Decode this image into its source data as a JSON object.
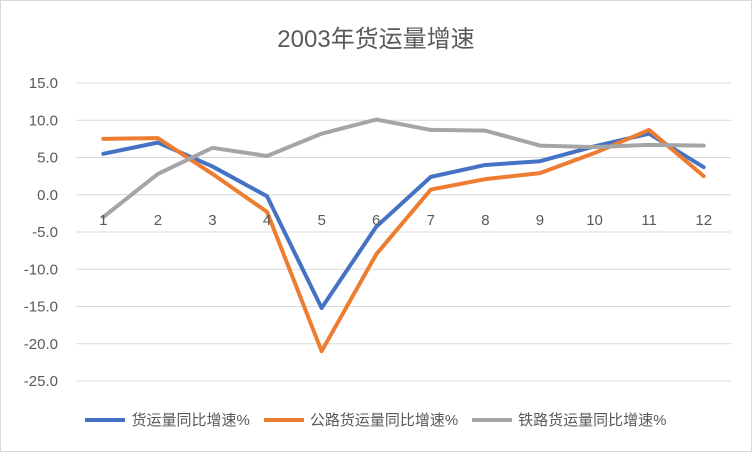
{
  "chart_data": {
    "type": "line",
    "title": "2003年货运量增速",
    "xlabel": "",
    "ylabel": "",
    "categories": [
      "1",
      "2",
      "3",
      "4",
      "5",
      "6",
      "7",
      "8",
      "9",
      "10",
      "11",
      "12"
    ],
    "ylim": [
      -25,
      15
    ],
    "yticks": [
      "15.0",
      "10.0",
      "5.0",
      "0.0",
      "-5.0",
      "-10.0",
      "-15.0",
      "-20.0",
      "-25.0"
    ],
    "grid": true,
    "legend_position": "bottom",
    "series": [
      {
        "name": "货运量同比增速%",
        "color": "#4472c4",
        "values": [
          5.5,
          7.0,
          3.8,
          -0.2,
          -15.2,
          -4.3,
          2.4,
          4.0,
          4.5,
          6.5,
          8.2,
          3.7
        ]
      },
      {
        "name": "公路货运量同比增速%",
        "color": "#ed7d31",
        "values": [
          7.5,
          7.6,
          2.8,
          -2.3,
          -21.0,
          -8.0,
          0.7,
          2.1,
          2.9,
          5.6,
          8.7,
          2.5
        ]
      },
      {
        "name": "铁路货运量同比增速%",
        "color": "#a5a5a5",
        "values": [
          -3.0,
          2.8,
          6.3,
          5.2,
          8.2,
          10.1,
          8.7,
          8.6,
          6.6,
          6.4,
          6.7,
          6.6
        ]
      }
    ]
  }
}
